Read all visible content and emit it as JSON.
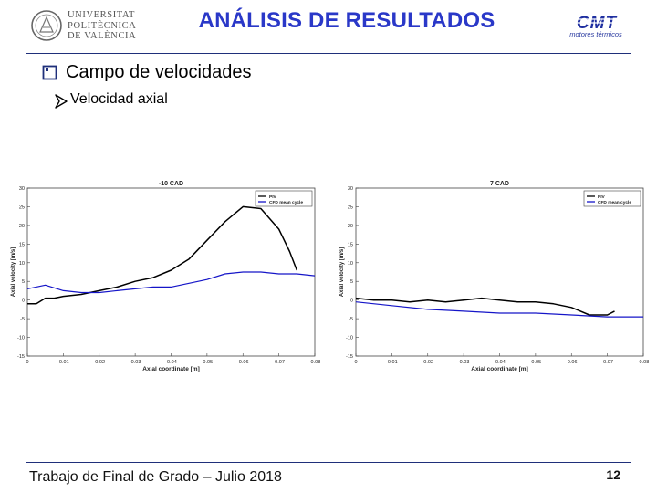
{
  "header": {
    "university_logo": {
      "lines": [
        "UNIVERSITAT",
        "POLITÈCNICA",
        "DE VALÈNCIA"
      ],
      "icon": "university-seal-icon"
    },
    "title": "ANÁLISIS DE RESULTADOS",
    "cmt_logo": {
      "text": "CMT",
      "subtitle": "motores térmicos"
    },
    "accent_color": "#2a38c8"
  },
  "bullets": {
    "level1": "Campo de velocidades",
    "level2": "Velocidad axial"
  },
  "footer": {
    "text": "Trabajo de Final de Grado – Julio 2018",
    "page": "12"
  },
  "chart_data": [
    {
      "type": "line",
      "title": "-10 CAD",
      "xlabel": "Axial coordinate [m]",
      "ylabel": "Axial velocity [m/s]",
      "xlim": [
        0,
        -0.08
      ],
      "ylim": [
        -15,
        30
      ],
      "xticks": [
        "0",
        "-0.01",
        "-0.02",
        "-0.03",
        "-0.04",
        "-0.05",
        "-0.06",
        "-0.07",
        "-0.08"
      ],
      "yticks": [
        "30",
        "25",
        "20",
        "15",
        "10",
        "5",
        "0",
        "-5",
        "-10",
        "-15"
      ],
      "grid": false,
      "legend_position": "top-right",
      "series": [
        {
          "name": "PIV",
          "color": "#000000",
          "x": [
            0,
            -0.0025,
            -0.005,
            -0.0075,
            -0.01,
            -0.015,
            -0.02,
            -0.025,
            -0.03,
            -0.035,
            -0.04,
            -0.045,
            -0.05,
            -0.055,
            -0.06,
            -0.065,
            -0.07,
            -0.073,
            -0.075
          ],
          "y": [
            -1,
            -1,
            0.5,
            0.5,
            1,
            1.5,
            2.5,
            3.5,
            5,
            6,
            8,
            11,
            16,
            21,
            25,
            24.5,
            19,
            13,
            8
          ]
        },
        {
          "name": "CFD mean cycle",
          "color": "#1515c8",
          "x": [
            0,
            -0.005,
            -0.01,
            -0.015,
            -0.02,
            -0.025,
            -0.03,
            -0.035,
            -0.04,
            -0.045,
            -0.05,
            -0.055,
            -0.06,
            -0.065,
            -0.07,
            -0.075,
            -0.08
          ],
          "y": [
            3,
            4,
            2.5,
            2,
            2,
            2.5,
            3,
            3.5,
            3.5,
            4.5,
            5.5,
            7,
            7.5,
            7.5,
            7,
            7,
            6.5
          ]
        }
      ]
    },
    {
      "type": "line",
      "title": "7 CAD",
      "xlabel": "Axial coordinate [m]",
      "ylabel": "Axial velocity [m/s]",
      "xlim": [
        0,
        -0.08
      ],
      "ylim": [
        -15,
        30
      ],
      "xticks": [
        "0",
        "-0.01",
        "-0.02",
        "-0.03",
        "-0.04",
        "-0.05",
        "-0.06",
        "-0.07",
        "-0.08"
      ],
      "yticks": [
        "30",
        "25",
        "20",
        "15",
        "10",
        "5",
        "0",
        "-5",
        "-10",
        "-15"
      ],
      "grid": false,
      "legend_position": "top-right",
      "series": [
        {
          "name": "PIV",
          "color": "#000000",
          "x": [
            0,
            -0.005,
            -0.01,
            -0.015,
            -0.02,
            -0.025,
            -0.03,
            -0.035,
            -0.04,
            -0.045,
            -0.05,
            -0.055,
            -0.06,
            -0.065,
            -0.07,
            -0.072
          ],
          "y": [
            0.5,
            0,
            0,
            -0.5,
            0,
            -0.5,
            0,
            0.5,
            0,
            -0.5,
            -0.5,
            -1,
            -2,
            -4,
            -4,
            -3
          ]
        },
        {
          "name": "CFD mean cycle",
          "color": "#1515c8",
          "x": [
            0,
            -0.01,
            -0.02,
            -0.03,
            -0.04,
            -0.05,
            -0.06,
            -0.07,
            -0.08
          ],
          "y": [
            -0.5,
            -1.5,
            -2.5,
            -3,
            -3.5,
            -3.5,
            -4,
            -4.5,
            -4.5
          ]
        }
      ]
    }
  ]
}
